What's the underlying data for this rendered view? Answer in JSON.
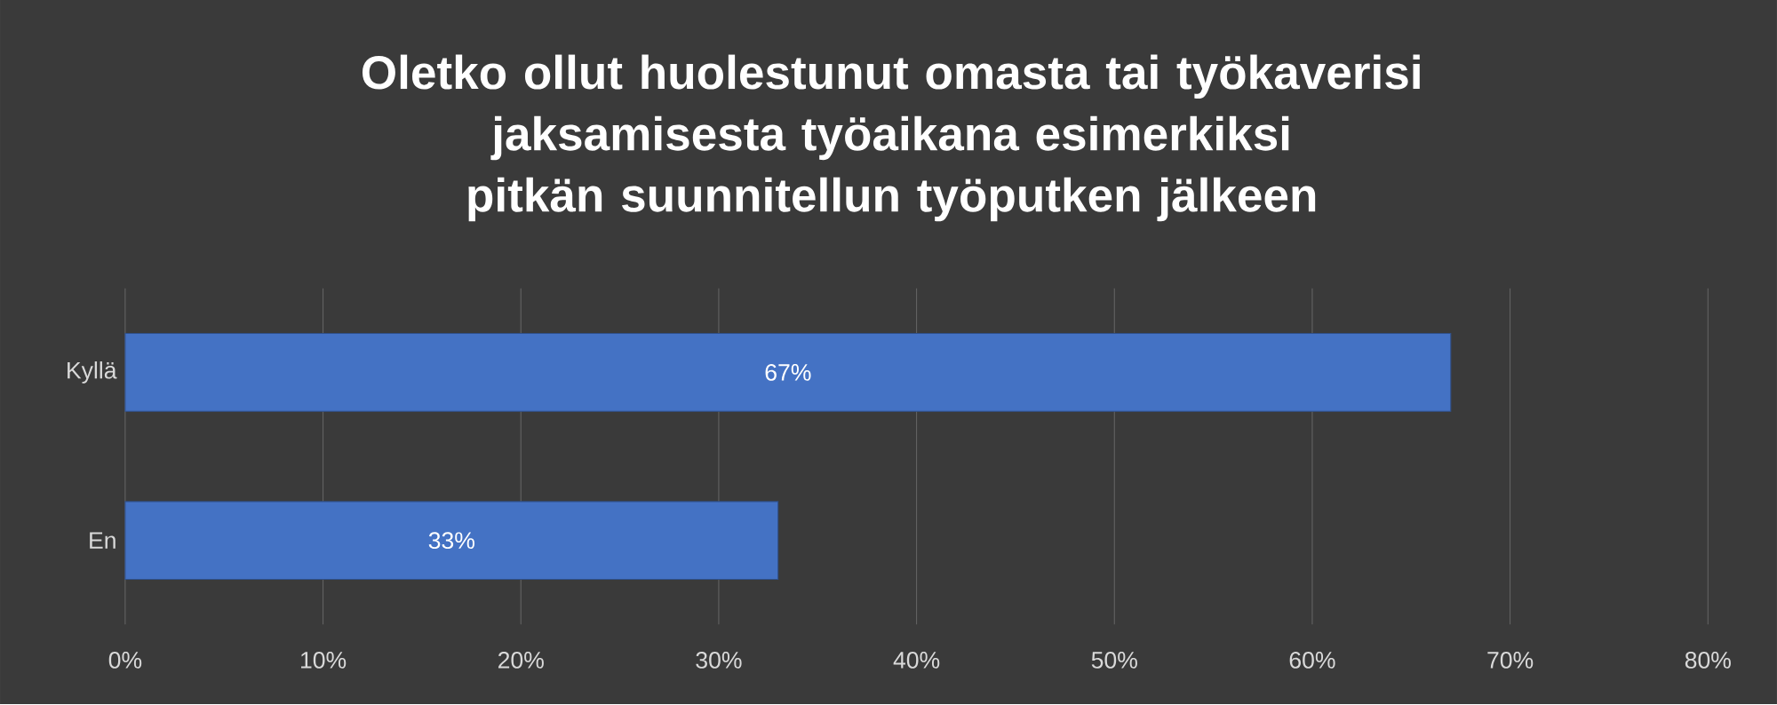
{
  "chart_data": {
    "type": "bar",
    "orientation": "horizontal",
    "title": "Oletko ollut huolestunut omasta tai työkaverisi jaksamisesta työaikana esimerkiksi pitkän suunnitellun työputken jälkeen",
    "categories": [
      "Kyllä",
      "En"
    ],
    "values": [
      67,
      33
    ],
    "value_labels": [
      "67%",
      "33%"
    ],
    "color": "#4472c4",
    "xlim": [
      0,
      80
    ],
    "xticks": [
      {
        "value": 0,
        "label": "0%"
      },
      {
        "value": 10,
        "label": "10%"
      },
      {
        "value": 20,
        "label": "20%"
      },
      {
        "value": 30,
        "label": "30%"
      },
      {
        "value": 40,
        "label": "40%"
      },
      {
        "value": 50,
        "label": "50%"
      },
      {
        "value": 60,
        "label": "60%"
      },
      {
        "value": 70,
        "label": "70%"
      },
      {
        "value": 80,
        "label": "80%"
      }
    ],
    "grid": "x"
  }
}
